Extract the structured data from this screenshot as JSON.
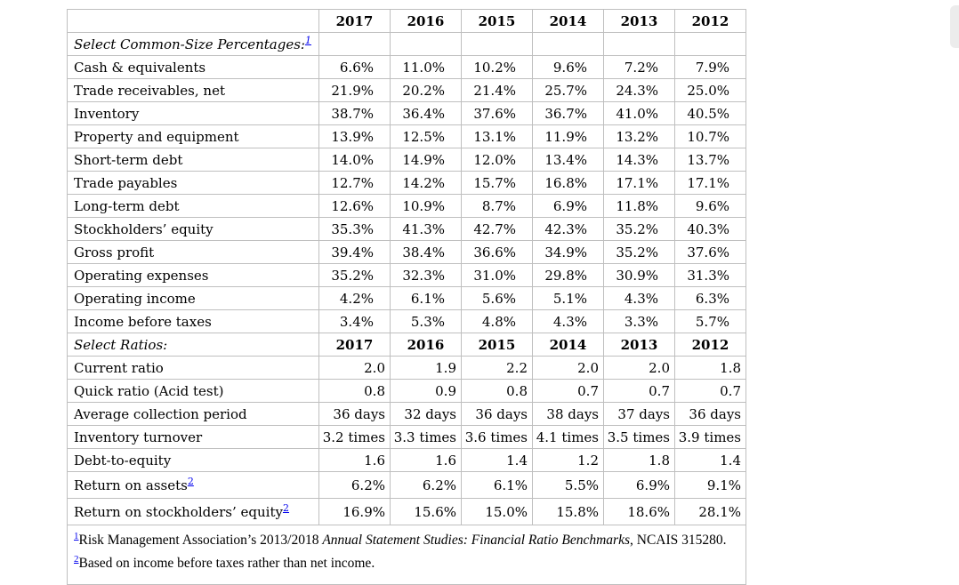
{
  "page": {
    "background": "#ffffff",
    "border_color": "#bfbfbf",
    "link_color": "#0000ee"
  },
  "table": {
    "years": [
      "2017",
      "2016",
      "2015",
      "2014",
      "2013",
      "2012"
    ],
    "section1": {
      "title": "Select Common-Size Percentages:",
      "footnote_ref": "1",
      "rows": [
        {
          "label": "Cash & equivalents",
          "values": [
            "6.6%",
            "11.0%",
            "10.2%",
            "9.6%",
            "7.2%",
            "7.9%"
          ]
        },
        {
          "label": "Trade receivables, net",
          "values": [
            "21.9%",
            "20.2%",
            "21.4%",
            "25.7%",
            "24.3%",
            "25.0%"
          ]
        },
        {
          "label": "Inventory",
          "values": [
            "38.7%",
            "36.4%",
            "37.6%",
            "36.7%",
            "41.0%",
            "40.5%"
          ]
        },
        {
          "label": "Property and equipment",
          "values": [
            "13.9%",
            "12.5%",
            "13.1%",
            "11.9%",
            "13.2%",
            "10.7%"
          ]
        },
        {
          "label": "Short-term debt",
          "values": [
            "14.0%",
            "14.9%",
            "12.0%",
            "13.4%",
            "14.3%",
            "13.7%"
          ]
        },
        {
          "label": "Trade payables",
          "values": [
            "12.7%",
            "14.2%",
            "15.7%",
            "16.8%",
            "17.1%",
            "17.1%"
          ]
        },
        {
          "label": "Long-term debt",
          "values": [
            "12.6%",
            "10.9%",
            "8.7%",
            "6.9%",
            "11.8%",
            "9.6%"
          ]
        },
        {
          "label": "Stockholders’ equity",
          "values": [
            "35.3%",
            "41.3%",
            "42.7%",
            "42.3%",
            "35.2%",
            "40.3%"
          ]
        },
        {
          "label": "Gross profit",
          "values": [
            "39.4%",
            "38.4%",
            "36.6%",
            "34.9%",
            "35.2%",
            "37.6%"
          ]
        },
        {
          "label": "Operating expenses",
          "values": [
            "35.2%",
            "32.3%",
            "31.0%",
            "29.8%",
            "30.9%",
            "31.3%"
          ]
        },
        {
          "label": "Operating income",
          "values": [
            "4.2%",
            "6.1%",
            "5.6%",
            "5.1%",
            "4.3%",
            "6.3%"
          ]
        },
        {
          "label": "Income before taxes",
          "values": [
            "3.4%",
            "5.3%",
            "4.8%",
            "4.3%",
            "3.3%",
            "5.7%"
          ]
        }
      ]
    },
    "section2": {
      "title": "Select Ratios:",
      "rows": [
        {
          "label": "Current ratio",
          "values": [
            "2.0",
            "1.9",
            "2.2",
            "2.0",
            "2.0",
            "1.8"
          ]
        },
        {
          "label": "Quick ratio (Acid test)",
          "values": [
            "0.8",
            "0.9",
            "0.8",
            "0.7",
            "0.7",
            "0.7"
          ]
        },
        {
          "label": "Average collection period",
          "values": [
            "36 days",
            "32 days",
            "36 days",
            "38 days",
            "37 days",
            "36 days"
          ]
        },
        {
          "label": "Inventory turnover",
          "values": [
            "3.2 times",
            "3.3 times",
            "3.6 times",
            "4.1 times",
            "3.5 times",
            "3.9 times"
          ]
        },
        {
          "label": "Debt-to-equity",
          "values": [
            "1.6",
            "1.6",
            "1.4",
            "1.2",
            "1.8",
            "1.4"
          ]
        },
        {
          "label": "Return on assets",
          "footnote_ref": "2",
          "values": [
            "6.2%",
            "6.2%",
            "6.1%",
            "5.5%",
            "6.9%",
            "9.1%"
          ]
        },
        {
          "label": "Return on stockholders’ equity",
          "footnote_ref": "2",
          "values": [
            "16.9%",
            "15.6%",
            "15.0%",
            "15.8%",
            "18.6%",
            "28.1%"
          ]
        }
      ]
    },
    "footnotes": [
      {
        "ref": "1",
        "text": "Risk Management Association’s 2013/2018 ",
        "italic": "Annual Statement Studies: Financial Ratio Benchmarks",
        "text_after": ", NCAIS 315280."
      },
      {
        "ref": "2",
        "text": "Based on income before taxes rather than net income.",
        "italic": "",
        "text_after": ""
      }
    ]
  }
}
